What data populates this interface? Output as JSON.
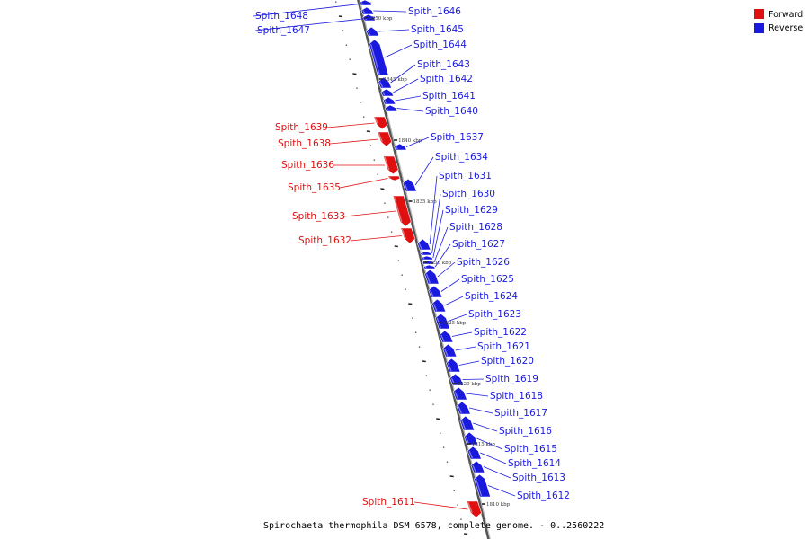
{
  "colors": {
    "forward": "#e01010",
    "reverse": "#1a1adf",
    "backbone": "#777777"
  },
  "caption": "Spirochaeta thermophila DSM 6578, complete genome. - 0..2560222",
  "legend": [
    {
      "label": "Forward",
      "color": "#e01010"
    },
    {
      "label": "Reverse",
      "color": "#1a1adf"
    }
  ],
  "kbp_marks": [
    {
      "label": "1850 kbp",
      "pos": 1850
    },
    {
      "label": "1845 kbp",
      "pos": 1845
    },
    {
      "label": "1840 kbp",
      "pos": 1840
    },
    {
      "label": "1835 kbp",
      "pos": 1835
    },
    {
      "label": "1830 kbp",
      "pos": 1830
    },
    {
      "label": "1825 kbp",
      "pos": 1825
    },
    {
      "label": "1820 kbp",
      "pos": 1820
    },
    {
      "label": "1815 kbp",
      "pos": 1815
    },
    {
      "label": "1810 kbp",
      "pos": 1810
    }
  ],
  "genes": [
    {
      "name": "Spith_1648",
      "strand": "reverse"
    },
    {
      "name": "Spith_1647",
      "strand": "reverse"
    },
    {
      "name": "Spith_1646",
      "strand": "reverse"
    },
    {
      "name": "Spith_1645",
      "strand": "reverse"
    },
    {
      "name": "Spith_1644",
      "strand": "reverse"
    },
    {
      "name": "Spith_1643",
      "strand": "reverse"
    },
    {
      "name": "Spith_1642",
      "strand": "reverse"
    },
    {
      "name": "Spith_1641",
      "strand": "reverse"
    },
    {
      "name": "Spith_1640",
      "strand": "reverse"
    },
    {
      "name": "Spith_1639",
      "strand": "forward"
    },
    {
      "name": "Spith_1638",
      "strand": "forward"
    },
    {
      "name": "Spith_1637",
      "strand": "reverse"
    },
    {
      "name": "Spith_1636",
      "strand": "forward"
    },
    {
      "name": "Spith_1635",
      "strand": "forward"
    },
    {
      "name": "Spith_1634",
      "strand": "reverse"
    },
    {
      "name": "Spith_1633",
      "strand": "forward"
    },
    {
      "name": "Spith_1632",
      "strand": "forward"
    },
    {
      "name": "Spith_1631",
      "strand": "reverse"
    },
    {
      "name": "Spith_1630",
      "strand": "reverse"
    },
    {
      "name": "Spith_1629",
      "strand": "reverse"
    },
    {
      "name": "Spith_1628",
      "strand": "reverse"
    },
    {
      "name": "Spith_1627",
      "strand": "reverse"
    },
    {
      "name": "Spith_1626",
      "strand": "reverse"
    },
    {
      "name": "Spith_1625",
      "strand": "reverse"
    },
    {
      "name": "Spith_1624",
      "strand": "reverse"
    },
    {
      "name": "Spith_1623",
      "strand": "reverse"
    },
    {
      "name": "Spith_1622",
      "strand": "reverse"
    },
    {
      "name": "Spith_1621",
      "strand": "reverse"
    },
    {
      "name": "Spith_1620",
      "strand": "reverse"
    },
    {
      "name": "Spith_1619",
      "strand": "reverse"
    },
    {
      "name": "Spith_1618",
      "strand": "reverse"
    },
    {
      "name": "Spith_1617",
      "strand": "reverse"
    },
    {
      "name": "Spith_1616",
      "strand": "reverse"
    },
    {
      "name": "Spith_1615",
      "strand": "reverse"
    },
    {
      "name": "Spith_1614",
      "strand": "reverse"
    },
    {
      "name": "Spith_1613",
      "strand": "reverse"
    },
    {
      "name": "Spith_1612",
      "strand": "reverse"
    },
    {
      "name": "Spith_1611",
      "strand": "forward"
    }
  ]
}
